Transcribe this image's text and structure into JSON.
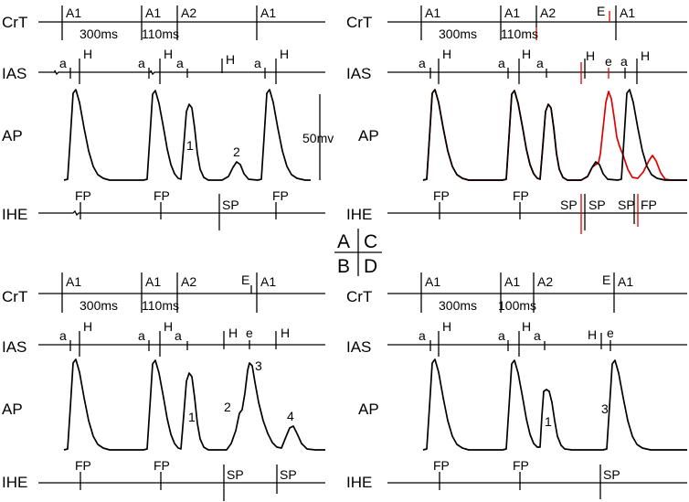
{
  "quadrant_key": {
    "a": "A",
    "c": "C",
    "b": "B",
    "d": "D"
  },
  "row_labels": {
    "crt": "CrT",
    "ias": "IAS",
    "ap": "AP",
    "ihe": "IHE"
  },
  "scale_bar": "50mv",
  "panels": {
    "A": {
      "crt_marks": [
        "A1",
        "A1",
        "A2",
        "A1"
      ],
      "crt_intervals": [
        "300ms",
        "110ms"
      ],
      "ias_marks": [
        "a",
        "H",
        "a",
        "H",
        "a",
        "H",
        "a",
        "H"
      ],
      "ap_labels": [
        "1",
        "2"
      ],
      "ihe_marks": [
        "FP",
        "FP",
        "SP",
        "FP"
      ]
    },
    "B": {
      "crt_marks": [
        "A1",
        "A1",
        "A2",
        "E",
        "A1"
      ],
      "crt_intervals": [
        "300ms",
        "110ms"
      ],
      "ias_marks": [
        "a",
        "H",
        "a",
        "H",
        "a",
        "H",
        "e",
        "H"
      ],
      "ap_labels": [
        "1",
        "2",
        "3",
        "4"
      ],
      "ihe_marks": [
        "FP",
        "FP",
        "SP",
        "SP"
      ]
    },
    "C": {
      "crt_marks": [
        "A1",
        "A1",
        "A2",
        "E",
        "A1"
      ],
      "crt_intervals": [
        "300ms",
        "110ms"
      ],
      "ias_marks": [
        "a",
        "H",
        "a",
        "H",
        "a",
        "H",
        "e",
        "a",
        "H"
      ],
      "ihe_marks": [
        "FP",
        "FP",
        "SP",
        "SP",
        "SP",
        "FP"
      ]
    },
    "D": {
      "crt_marks": [
        "A1",
        "A1",
        "A2",
        "E",
        "A1"
      ],
      "crt_intervals": [
        "300ms",
        "100ms"
      ],
      "ias_marks": [
        "a",
        "H",
        "a",
        "H",
        "a",
        "H",
        "e"
      ],
      "ap_labels": [
        "1",
        "3"
      ],
      "ihe_marks": [
        "FP",
        "FP",
        "SP"
      ]
    }
  },
  "colors": {
    "trace": "#000000",
    "overlay": "#e00000"
  }
}
